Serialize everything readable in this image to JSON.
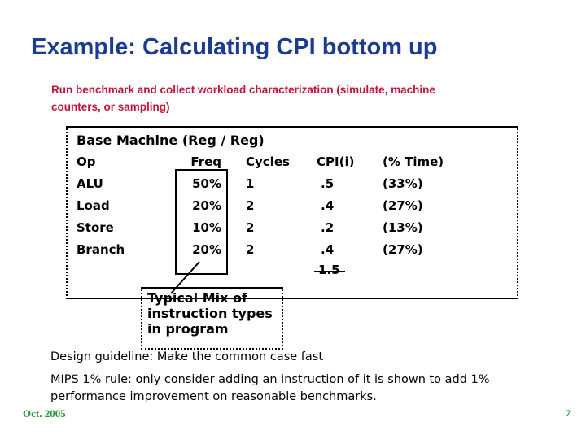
{
  "title": "Example: Calculating CPI bottom up",
  "subtitle": {
    "line1": "Run benchmark and collect workload characterization (simulate, machine",
    "line2": "counters, or sampling)"
  },
  "table": {
    "caption": "Base Machine (Reg / Reg)",
    "columns": [
      "Op",
      "Freq",
      "Cycles",
      "CPI(i)",
      "(% Time)"
    ],
    "rows": [
      {
        "op": "ALU",
        "freq": "50%",
        "cycles": "1",
        "cpi": ".5",
        "time": "(33%)"
      },
      {
        "op": "Load",
        "freq": "20%",
        "cycles": "2",
        "cpi": ".4",
        "time": "(27%)"
      },
      {
        "op": "Store",
        "freq": "10%",
        "cycles": "2",
        "cpi": ".2",
        "time": "(13%)"
      },
      {
        "op": "Branch",
        "freq": "20%",
        "cycles": "2",
        "cpi": ".4",
        "time": "(27%)"
      }
    ],
    "total_cpi": "1.5"
  },
  "callout": {
    "line1": "Typical Mix of",
    "line2": "instruction types",
    "line3": "in program"
  },
  "notes": {
    "design_guideline": "Design guideline: Make the common case fast",
    "mips_rule_line1": "MIPS 1% rule: only consider adding an instruction of it is shown to add 1%",
    "mips_rule_line2": "performance improvement on reasonable benchmarks."
  },
  "footer": {
    "date": "Oct. 2005",
    "page_number": "7"
  },
  "colors": {
    "title_blue": "#1B3A94",
    "subtitle_red": "#C41239",
    "footer_green": "#1F9733",
    "text_black": "#000000"
  }
}
